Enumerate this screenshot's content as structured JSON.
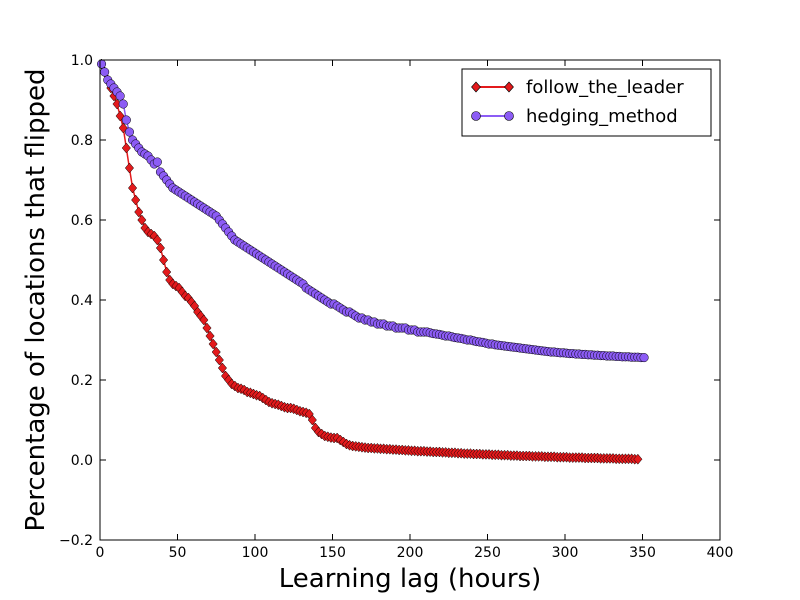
{
  "chart_data": {
    "type": "line",
    "xlabel": "Learning lag (hours)",
    "ylabel": "Percentage of locations that flipped",
    "xlim": [
      0,
      400
    ],
    "ylim": [
      -0.2,
      1.0
    ],
    "x_ticks": [
      0,
      50,
      100,
      150,
      200,
      250,
      300,
      350,
      400
    ],
    "y_ticks": [
      -0.2,
      0.0,
      0.2,
      0.4,
      0.6,
      0.8,
      1.0
    ],
    "x_tick_labels": [
      "0",
      "50",
      "100",
      "150",
      "200",
      "250",
      "300",
      "350",
      "400"
    ],
    "y_tick_labels": [
      "−0.2",
      "0.0",
      "0.2",
      "0.4",
      "0.6",
      "0.8",
      "1.0"
    ],
    "grid": false,
    "legend_position": "upper right",
    "x_start": 1,
    "x_step": 2,
    "series": [
      {
        "name": "follow_the_leader",
        "marker": "diamond",
        "color": "#e31a1c",
        "values": [
          0.99,
          0.97,
          0.95,
          0.93,
          0.91,
          0.89,
          0.86,
          0.83,
          0.78,
          0.73,
          0.68,
          0.65,
          0.62,
          0.6,
          0.58,
          0.57,
          0.565,
          0.56,
          0.55,
          0.53,
          0.5,
          0.47,
          0.45,
          0.44,
          0.435,
          0.43,
          0.42,
          0.41,
          0.405,
          0.395,
          0.385,
          0.37,
          0.36,
          0.35,
          0.33,
          0.31,
          0.29,
          0.27,
          0.25,
          0.23,
          0.21,
          0.2,
          0.19,
          0.185,
          0.18,
          0.178,
          0.175,
          0.17,
          0.168,
          0.165,
          0.162,
          0.16,
          0.155,
          0.15,
          0.145,
          0.142,
          0.14,
          0.138,
          0.135,
          0.132,
          0.13,
          0.13,
          0.128,
          0.125,
          0.122,
          0.12,
          0.118,
          0.115,
          0.1,
          0.08,
          0.07,
          0.065,
          0.06,
          0.058,
          0.056,
          0.055,
          0.055,
          0.05,
          0.045,
          0.04,
          0.037,
          0.035,
          0.034,
          0.033,
          0.032,
          0.031,
          0.03,
          0.03,
          0.029,
          0.029,
          0.028,
          0.028,
          0.027,
          0.027,
          0.026,
          0.026,
          0.025,
          0.025,
          0.024,
          0.024,
          0.023,
          0.023,
          0.022,
          0.022,
          0.022,
          0.021,
          0.021,
          0.02,
          0.02,
          0.02,
          0.019,
          0.019,
          0.018,
          0.018,
          0.018,
          0.017,
          0.017,
          0.016,
          0.016,
          0.016,
          0.015,
          0.015,
          0.015,
          0.014,
          0.014,
          0.014,
          0.013,
          0.013,
          0.013,
          0.012,
          0.012,
          0.012,
          0.011,
          0.011,
          0.011,
          0.01,
          0.01,
          0.01,
          0.01,
          0.009,
          0.009,
          0.009,
          0.009,
          0.008,
          0.008,
          0.008,
          0.008,
          0.007,
          0.007,
          0.007,
          0.007,
          0.006,
          0.006,
          0.006,
          0.006,
          0.006,
          0.005,
          0.005,
          0.005,
          0.005,
          0.005,
          0.004,
          0.004,
          0.004,
          0.004,
          0.004,
          0.003,
          0.003,
          0.003,
          0.003,
          0.003,
          0.003,
          0.002,
          0.002
        ]
      },
      {
        "name": "hedging_method",
        "marker": "circle",
        "color": "#8c5cf5",
        "values": [
          0.99,
          0.97,
          0.95,
          0.94,
          0.93,
          0.92,
          0.91,
          0.89,
          0.85,
          0.82,
          0.8,
          0.79,
          0.78,
          0.77,
          0.765,
          0.76,
          0.75,
          0.74,
          0.745,
          0.72,
          0.71,
          0.7,
          0.69,
          0.68,
          0.675,
          0.67,
          0.665,
          0.66,
          0.655,
          0.65,
          0.645,
          0.64,
          0.635,
          0.63,
          0.625,
          0.62,
          0.615,
          0.61,
          0.6,
          0.59,
          0.58,
          0.57,
          0.56,
          0.55,
          0.545,
          0.54,
          0.535,
          0.53,
          0.525,
          0.52,
          0.515,
          0.51,
          0.505,
          0.5,
          0.495,
          0.49,
          0.485,
          0.48,
          0.475,
          0.47,
          0.465,
          0.46,
          0.455,
          0.45,
          0.445,
          0.44,
          0.43,
          0.425,
          0.42,
          0.415,
          0.41,
          0.405,
          0.4,
          0.395,
          0.39,
          0.39,
          0.385,
          0.38,
          0.375,
          0.37,
          0.37,
          0.365,
          0.36,
          0.355,
          0.355,
          0.35,
          0.35,
          0.345,
          0.345,
          0.34,
          0.34,
          0.34,
          0.335,
          0.335,
          0.335,
          0.33,
          0.33,
          0.33,
          0.33,
          0.325,
          0.325,
          0.325,
          0.32,
          0.32,
          0.32,
          0.32,
          0.318,
          0.316,
          0.315,
          0.314,
          0.312,
          0.31,
          0.31,
          0.308,
          0.306,
          0.305,
          0.304,
          0.302,
          0.3,
          0.3,
          0.298,
          0.296,
          0.295,
          0.294,
          0.292,
          0.29,
          0.29,
          0.288,
          0.287,
          0.286,
          0.285,
          0.284,
          0.283,
          0.282,
          0.281,
          0.28,
          0.279,
          0.278,
          0.277,
          0.276,
          0.275,
          0.274,
          0.273,
          0.272,
          0.271,
          0.27,
          0.27,
          0.269,
          0.268,
          0.268,
          0.267,
          0.266,
          0.266,
          0.265,
          0.265,
          0.264,
          0.264,
          0.263,
          0.263,
          0.262,
          0.262,
          0.261,
          0.261,
          0.26,
          0.26,
          0.26,
          0.259,
          0.259,
          0.258,
          0.258,
          0.258,
          0.257,
          0.257,
          0.257,
          0.256,
          0.256
        ]
      }
    ]
  }
}
